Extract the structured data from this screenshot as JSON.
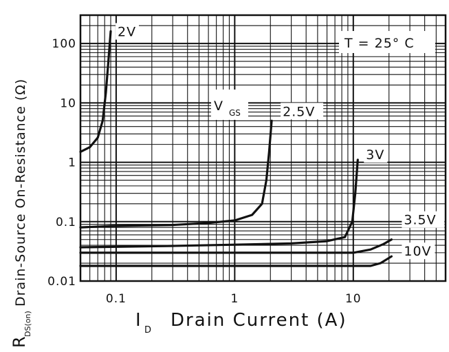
{
  "chart_data": {
    "type": "line",
    "x_scale": "log",
    "y_scale": "log",
    "xlim": [
      0.05,
      60
    ],
    "ylim": [
      0.01,
      300
    ],
    "grid": true,
    "xlabel": {
      "symbol": "I",
      "subscript": "D",
      "text": "Drain Current (A)"
    },
    "ylabel": {
      "symbol": "R",
      "subscript": "DS(on)",
      "text": "Drain-Source On-Resistance (Ω)"
    },
    "x_ticks": [
      {
        "value": 0.1,
        "label": "0.1"
      },
      {
        "value": 1,
        "label": "1"
      },
      {
        "value": 10,
        "label": "10"
      }
    ],
    "y_ticks": [
      {
        "value": 0.01,
        "label": "0.01"
      },
      {
        "value": 0.1,
        "label": "0.1"
      },
      {
        "value": 1,
        "label": "1"
      },
      {
        "value": 10,
        "label": "10"
      },
      {
        "value": 100,
        "label": "100"
      }
    ],
    "annotations": {
      "temperature": "T =  25° C",
      "vgs_symbol": "V",
      "vgs_subscript": "GS"
    },
    "series": [
      {
        "name": "2V",
        "points": [
          [
            0.05,
            1.5
          ],
          [
            0.06,
            1.8
          ],
          [
            0.07,
            2.6
          ],
          [
            0.077,
            5
          ],
          [
            0.082,
            15
          ],
          [
            0.086,
            50
          ],
          [
            0.09,
            160
          ]
        ]
      },
      {
        "name": "2.5V",
        "points": [
          [
            0.05,
            0.08
          ],
          [
            0.1,
            0.085
          ],
          [
            0.3,
            0.088
          ],
          [
            0.6,
            0.095
          ],
          [
            1.0,
            0.105
          ],
          [
            1.4,
            0.13
          ],
          [
            1.7,
            0.2
          ],
          [
            1.85,
            0.5
          ],
          [
            1.95,
            1.5
          ],
          [
            2.05,
            5
          ]
        ]
      },
      {
        "name": "3V",
        "points": [
          [
            0.05,
            0.037
          ],
          [
            0.3,
            0.039
          ],
          [
            1,
            0.041
          ],
          [
            3,
            0.043
          ],
          [
            6,
            0.047
          ],
          [
            8.5,
            0.055
          ],
          [
            9.8,
            0.1
          ],
          [
            10.4,
            0.3
          ],
          [
            10.9,
            1.1
          ]
        ]
      },
      {
        "name": "3.5V",
        "points": [
          [
            0.05,
            0.03
          ],
          [
            1,
            0.03
          ],
          [
            5,
            0.03
          ],
          [
            10,
            0.03
          ],
          [
            14,
            0.034
          ],
          [
            18,
            0.042
          ],
          [
            21,
            0.05
          ]
        ]
      },
      {
        "name": "10V",
        "points": [
          [
            0.05,
            0.018
          ],
          [
            1,
            0.018
          ],
          [
            8,
            0.018
          ],
          [
            14,
            0.018
          ],
          [
            17,
            0.02
          ],
          [
            21,
            0.026
          ]
        ]
      }
    ]
  }
}
